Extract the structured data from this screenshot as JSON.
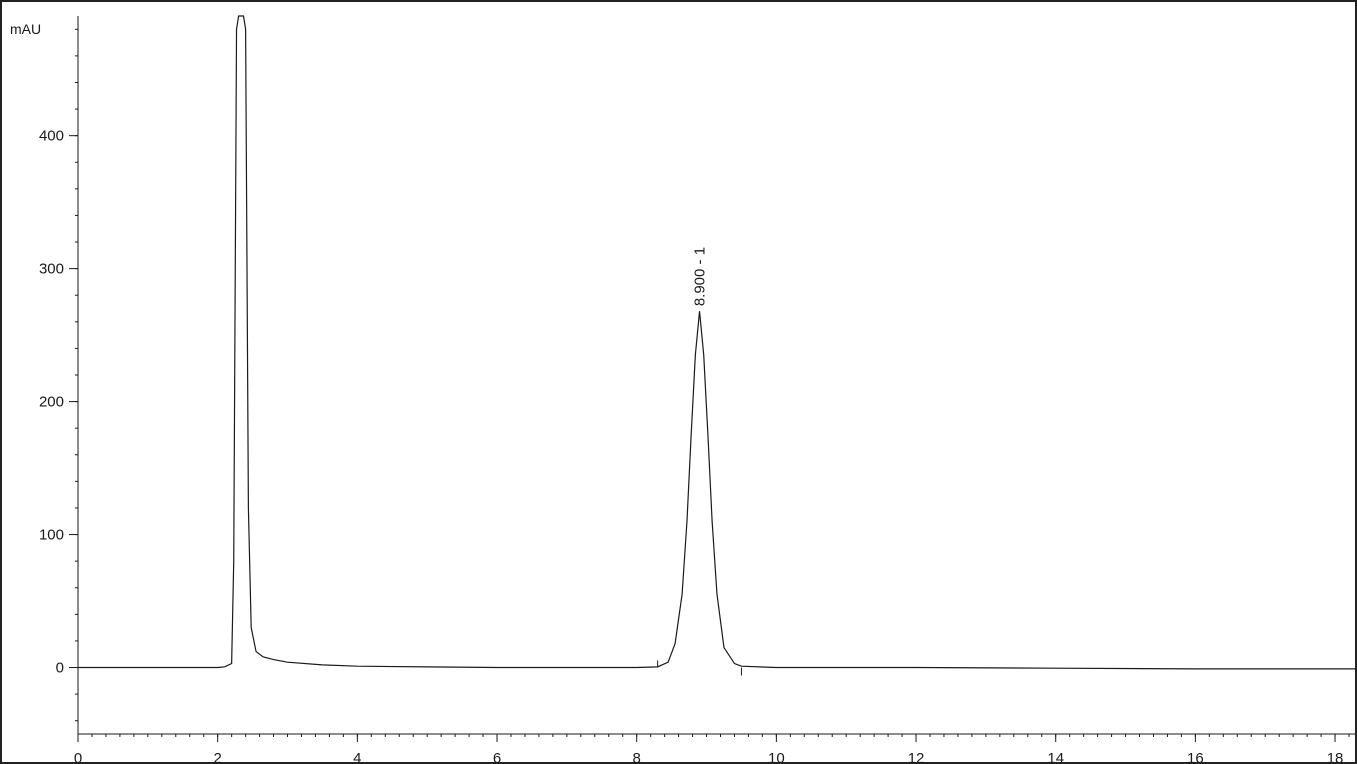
{
  "chart_data": {
    "type": "line",
    "title": "",
    "xlabel": "",
    "ylabel": "mAU",
    "xlim": [
      0,
      18.3
    ],
    "ylim": [
      -50,
      490
    ],
    "x_ticks": [
      0,
      2,
      4,
      6,
      8,
      10,
      12,
      14,
      16,
      18
    ],
    "y_ticks": [
      0,
      100,
      200,
      300,
      400
    ],
    "grid": false,
    "legend": "none",
    "line_color": "#1a1a1a",
    "series": [
      {
        "x": [
          0,
          1.0,
          2.0,
          2.1,
          2.2,
          2.23,
          2.27,
          2.3,
          2.33,
          2.37,
          2.4,
          2.44,
          2.48,
          2.55,
          2.65,
          2.8,
          3.0,
          3.5,
          4.0,
          5.0,
          6.0,
          7.0,
          8.0,
          8.3,
          8.45,
          8.55,
          8.65,
          8.72,
          8.78,
          8.84,
          8.9,
          8.96,
          9.02,
          9.08,
          9.15,
          9.25,
          9.4,
          9.5,
          10.0,
          12.0,
          14.0,
          16.0,
          18.3
        ],
        "y": [
          0,
          0,
          0,
          0.5,
          3,
          80,
          480,
          490,
          490,
          490,
          480,
          120,
          30,
          12,
          8,
          6,
          4,
          2,
          1,
          0.5,
          0,
          0,
          0,
          0.5,
          4,
          18,
          55,
          110,
          175,
          235,
          268,
          235,
          175,
          110,
          55,
          15,
          3,
          1,
          0,
          0,
          -0.5,
          -1,
          -1
        ]
      }
    ],
    "annotations": [
      {
        "x": 8.9,
        "y": 268,
        "text": "8.900 - 1"
      }
    ]
  }
}
